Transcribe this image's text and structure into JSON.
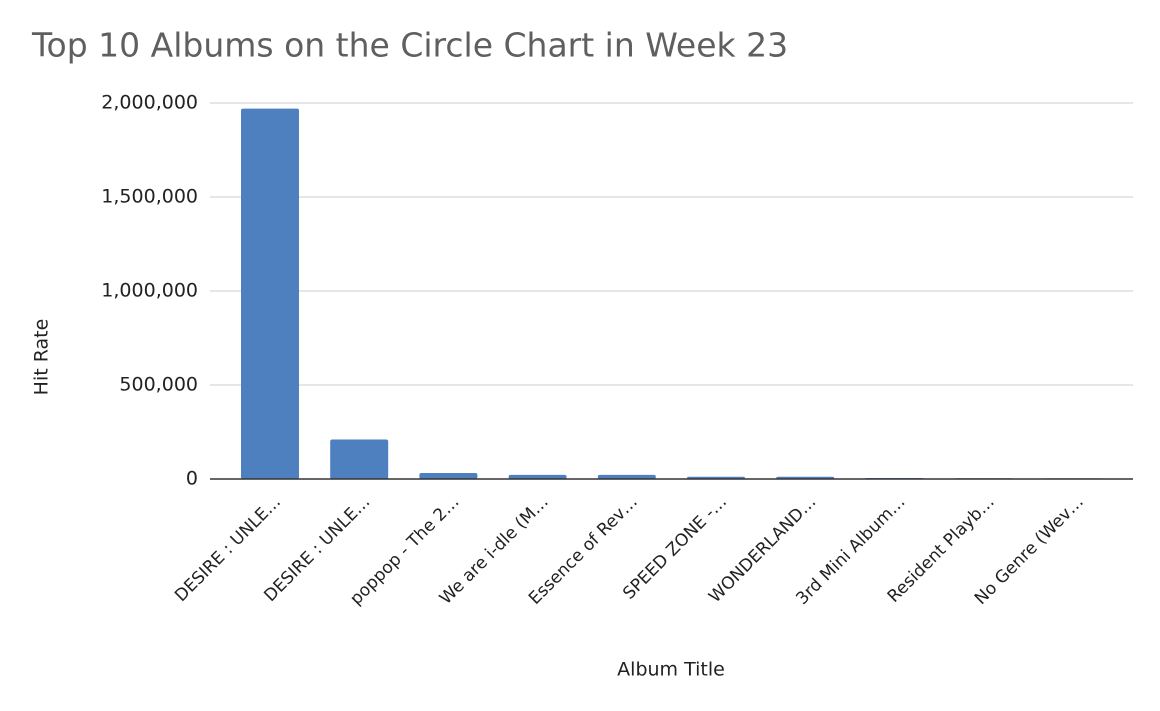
{
  "chart_data": {
    "type": "bar",
    "title": "Top 10 Albums on the Circle Chart in Week 23",
    "x_label": "Album Title",
    "y_label": "Hit Rate",
    "categories": [
      "DESIRE : UNLE…",
      "DESIRE : UNLE…",
      "poppop - The 2…",
      "We are i-dle (M…",
      "Essence of Rev…",
      "SPEED ZONE -…",
      "WONDERLAND…",
      "3rd Mini Album…",
      "Resident Playb…",
      "No Genre (Wev…"
    ],
    "values": [
      1970000,
      210000,
      32000,
      22000,
      22000,
      12000,
      12000,
      5000,
      4000,
      3000
    ],
    "color": "#4e7fbf",
    "ylim": [
      0,
      2000000
    ],
    "yticks": [
      0,
      {
        "value": 500000,
        "label": "500,000"
      },
      {
        "value": 1000000,
        "label": "1,000,000"
      },
      {
        "value": 1500000,
        "label": "1,500,000"
      },
      {
        "value": 2000000,
        "label": "2,000,000"
      }
    ],
    "grid": true
  }
}
